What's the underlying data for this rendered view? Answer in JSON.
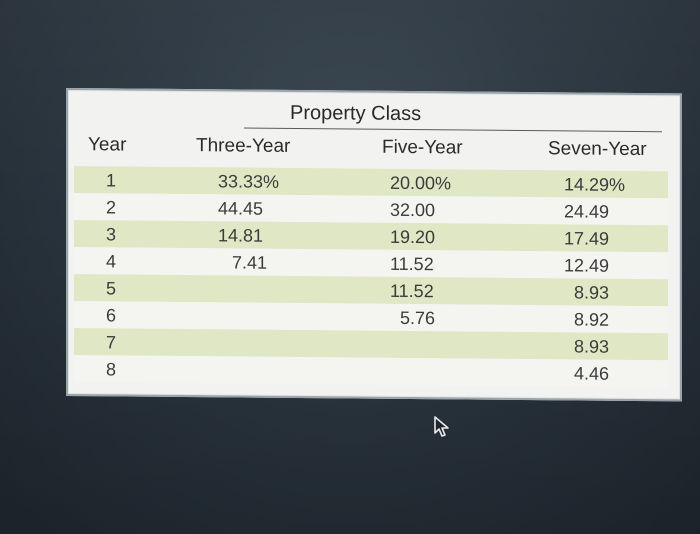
{
  "table": {
    "group_header": "Property Class",
    "columns": [
      "Year",
      "Three-Year",
      "Five-Year",
      "Seven-Year"
    ],
    "rows": [
      {
        "year": "1",
        "three": "33.33%",
        "five": "20.00%",
        "seven": "14.29%"
      },
      {
        "year": "2",
        "three": "44.45",
        "five": "32.00",
        "seven": "24.49"
      },
      {
        "year": "3",
        "three": "14.81",
        "five": "19.20",
        "seven": "17.49"
      },
      {
        "year": "4",
        "three": "7.41",
        "five": "11.52",
        "seven": "12.49"
      },
      {
        "year": "5",
        "three": "",
        "five": "11.52",
        "seven": "8.93"
      },
      {
        "year": "6",
        "three": "",
        "five": "5.76",
        "seven": "8.92"
      },
      {
        "year": "7",
        "three": "",
        "five": "",
        "seven": "8.93"
      },
      {
        "year": "8",
        "three": "",
        "five": "",
        "seven": "4.46"
      }
    ]
  },
  "icons": {
    "cursor": "mouse-pointer-icon"
  },
  "colors": {
    "row_shade": "#dfe7c4",
    "row_plain": "#f4f4f1",
    "background": "#2b3640"
  }
}
